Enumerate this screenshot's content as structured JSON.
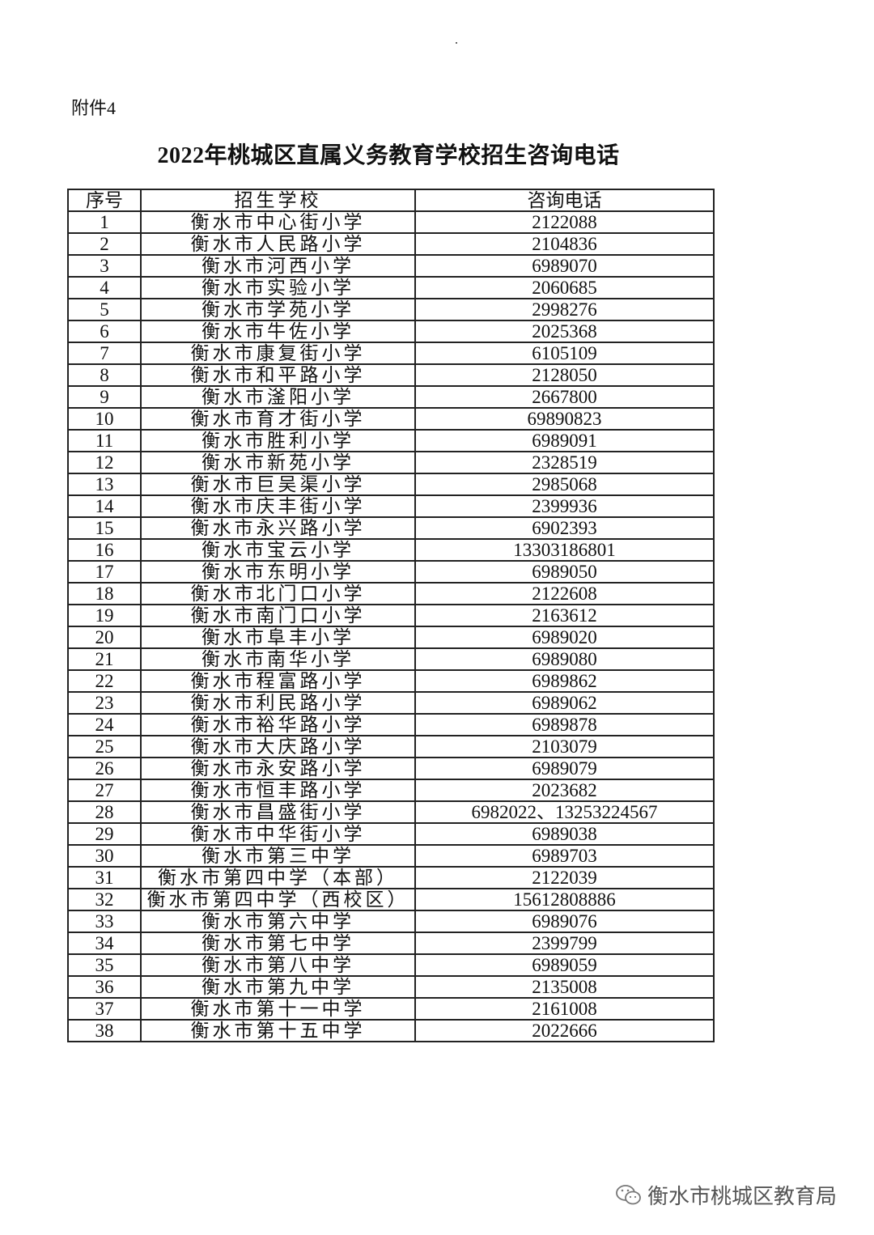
{
  "attachment": "附件4",
  "title": "2022年桃城区直属义务教育学校招生咨询电话",
  "table": {
    "headers": [
      "序号",
      "招生学校",
      "咨询电话"
    ],
    "rows": [
      [
        "1",
        "衡水市中心街小学",
        "2122088"
      ],
      [
        "2",
        "衡水市人民路小学",
        "2104836"
      ],
      [
        "3",
        "衡水市河西小学",
        "6989070"
      ],
      [
        "4",
        "衡水市实验小学",
        "2060685"
      ],
      [
        "5",
        "衡水市学苑小学",
        "2998276"
      ],
      [
        "6",
        "衡水市牛佐小学",
        "2025368"
      ],
      [
        "7",
        "衡水市康复街小学",
        "6105109"
      ],
      [
        "8",
        "衡水市和平路小学",
        "2128050"
      ],
      [
        "9",
        "衡水市滏阳小学",
        "2667800"
      ],
      [
        "10",
        "衡水市育才街小学",
        "69890823"
      ],
      [
        "11",
        "衡水市胜利小学",
        "6989091"
      ],
      [
        "12",
        "衡水市新苑小学",
        "2328519"
      ],
      [
        "13",
        "衡水市巨吴渠小学",
        "2985068"
      ],
      [
        "14",
        "衡水市庆丰街小学",
        "2399936"
      ],
      [
        "15",
        "衡水市永兴路小学",
        "6902393"
      ],
      [
        "16",
        "衡水市宝云小学",
        "13303186801"
      ],
      [
        "17",
        "衡水市东明小学",
        "6989050"
      ],
      [
        "18",
        "衡水市北门口小学",
        "2122608"
      ],
      [
        "19",
        "衡水市南门口小学",
        "2163612"
      ],
      [
        "20",
        "衡水市阜丰小学",
        "6989020"
      ],
      [
        "21",
        "衡水市南华小学",
        "6989080"
      ],
      [
        "22",
        "衡水市程富路小学",
        "6989862"
      ],
      [
        "23",
        "衡水市利民路小学",
        "6989062"
      ],
      [
        "24",
        "衡水市裕华路小学",
        "6989878"
      ],
      [
        "25",
        "衡水市大庆路小学",
        "2103079"
      ],
      [
        "26",
        "衡水市永安路小学",
        "6989079"
      ],
      [
        "27",
        "衡水市恒丰路小学",
        "2023682"
      ],
      [
        "28",
        "衡水市昌盛街小学",
        "6982022、13253224567"
      ],
      [
        "29",
        "衡水市中华街小学",
        "6989038"
      ],
      [
        "30",
        "衡水市第三中学",
        "6989703"
      ],
      [
        "31",
        "衡水市第四中学（本部）",
        "2122039"
      ],
      [
        "32",
        "衡水市第四中学（西校区）",
        "15612808886"
      ],
      [
        "33",
        "衡水市第六中学",
        "6989076"
      ],
      [
        "34",
        "衡水市第七中学",
        "2399799"
      ],
      [
        "35",
        "衡水市第八中学",
        "6989059"
      ],
      [
        "36",
        "衡水市第九中学",
        "2135008"
      ],
      [
        "37",
        "衡水市第十一中学",
        "2161008"
      ],
      [
        "38",
        "衡水市第十五中学",
        "2022666"
      ]
    ]
  },
  "watermark": {
    "icon": "wechat-icon",
    "text": "衡水市桃城区教育局"
  }
}
